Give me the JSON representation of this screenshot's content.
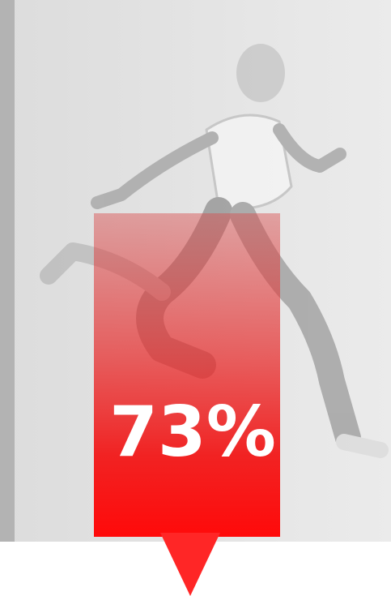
{
  "badge": {
    "text": "73%"
  }
}
